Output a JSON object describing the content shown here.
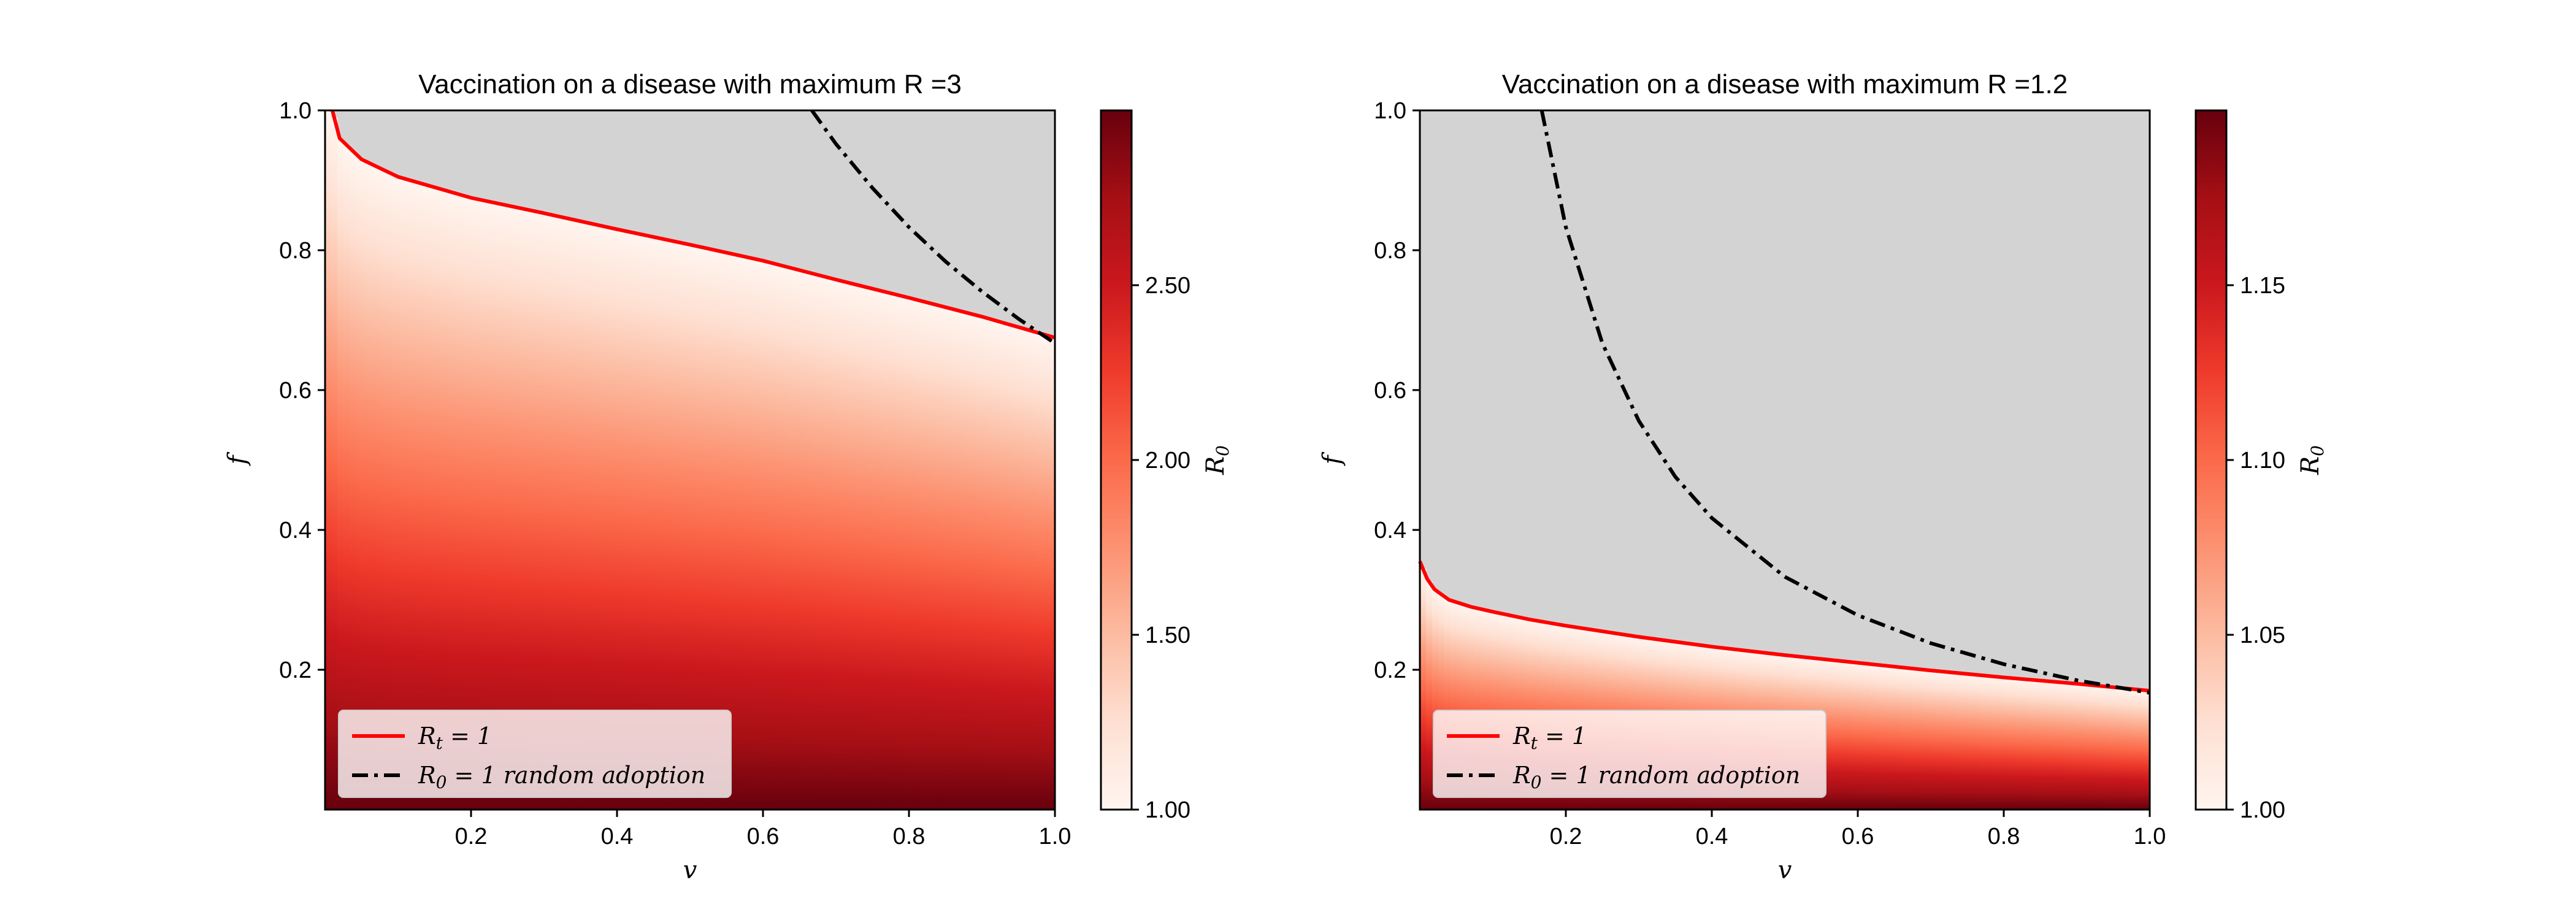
{
  "chart_data": [
    {
      "type": "heatmap",
      "title": "Vaccination on a disease with maximum R =3",
      "xlabel": "v",
      "ylabel": "f",
      "xlim": [
        0,
        1.0
      ],
      "ylim": [
        0,
        1.0
      ],
      "xticks": [
        "0.2",
        "0.4",
        "0.6",
        "0.8",
        "1.0"
      ],
      "yticks": [
        "0.2",
        "0.4",
        "0.6",
        "0.8",
        "1.0"
      ],
      "r_max": 3,
      "colorbar": {
        "label": "R",
        "label_sub": "0",
        "min": 1.0,
        "max": 3.0,
        "ticks": [
          "1.00",
          "1.50",
          "2.00",
          "2.50"
        ],
        "tick_values": [
          1.0,
          1.5,
          2.0,
          2.5
        ]
      },
      "masked_region_color": "#d3d3d3",
      "colormap": "Reds",
      "series": [
        {
          "name": "R_t = 1",
          "style": "solid",
          "color": "#ff0000",
          "x": [
            0.01,
            0.02,
            0.03,
            0.05,
            0.08,
            0.1,
            0.15,
            0.2,
            0.3,
            0.4,
            0.5,
            0.6,
            0.7,
            0.8,
            0.9,
            1.0
          ],
          "y": [
            1.0,
            0.96,
            0.95,
            0.93,
            0.915,
            0.905,
            0.89,
            0.875,
            0.853,
            0.83,
            0.808,
            0.785,
            0.758,
            0.732,
            0.705,
            0.675
          ]
        },
        {
          "name": "R_0 = 1 random adoption",
          "style": "dashdot",
          "color": "#000000",
          "x": [
            0.667,
            0.7,
            0.75,
            0.8,
            0.85,
            0.9,
            0.95,
            1.0
          ],
          "y": [
            1.0,
            0.952,
            0.889,
            0.833,
            0.784,
            0.741,
            0.702,
            0.667
          ]
        }
      ],
      "legend": {
        "position": "lower-left",
        "items": [
          {
            "main": "R",
            "sub": "t",
            "rest": " = 1"
          },
          {
            "main": "R",
            "sub": "0",
            "rest": " = 1 random adoption"
          }
        ]
      }
    },
    {
      "type": "heatmap",
      "title": "Vaccination on a disease with maximum R =1.2",
      "xlabel": "v",
      "ylabel": "f",
      "xlim": [
        0,
        1.0
      ],
      "ylim": [
        0,
        1.0
      ],
      "xticks": [
        "0.2",
        "0.4",
        "0.6",
        "0.8",
        "1.0"
      ],
      "yticks": [
        "0.2",
        "0.4",
        "0.6",
        "0.8",
        "1.0"
      ],
      "r_max": 1.2,
      "colorbar": {
        "label": "R",
        "label_sub": "0",
        "min": 1.0,
        "max": 1.2,
        "ticks": [
          "1.00",
          "1.05",
          "1.10",
          "1.15"
        ],
        "tick_values": [
          1.0,
          1.05,
          1.1,
          1.15
        ]
      },
      "masked_region_color": "#d3d3d3",
      "colormap": "Reds",
      "series": [
        {
          "name": "R_t = 1",
          "style": "solid",
          "color": "#ff0000",
          "x": [
            0.0,
            0.01,
            0.02,
            0.04,
            0.07,
            0.1,
            0.15,
            0.2,
            0.3,
            0.4,
            0.5,
            0.6,
            0.7,
            0.8,
            0.9,
            1.0
          ],
          "y": [
            0.355,
            0.33,
            0.315,
            0.3,
            0.29,
            0.283,
            0.272,
            0.263,
            0.247,
            0.233,
            0.221,
            0.21,
            0.199,
            0.189,
            0.18,
            0.17
          ],
          "note": ""
        },
        {
          "name": "R_0 = 1 random adoption",
          "style": "dashdot",
          "color": "#000000",
          "x": [
            0.167,
            0.2,
            0.25,
            0.3,
            0.35,
            0.4,
            0.5,
            0.6,
            0.7,
            0.8,
            0.9,
            1.0
          ],
          "y": [
            1.0,
            0.833,
            0.667,
            0.556,
            0.476,
            0.417,
            0.333,
            0.278,
            0.238,
            0.208,
            0.185,
            0.167
          ]
        }
      ],
      "legend": {
        "position": "lower-left",
        "items": [
          {
            "main": "R",
            "sub": "t",
            "rest": " = 1"
          },
          {
            "main": "R",
            "sub": "0",
            "rest": " = 1 random adoption"
          }
        ]
      }
    }
  ]
}
